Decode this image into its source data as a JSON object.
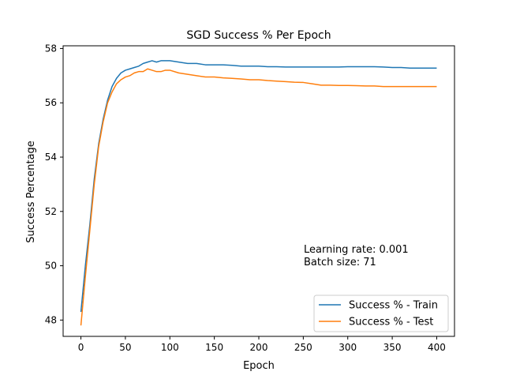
{
  "chart_data": {
    "type": "line",
    "title": "SGD Success % Per Epoch",
    "xlabel": "Epoch",
    "ylabel": "Success Percentage",
    "xlim": [
      -20,
      420
    ],
    "ylim": [
      47.4,
      58.1
    ],
    "xticks": [
      0,
      50,
      100,
      150,
      200,
      250,
      300,
      350,
      400
    ],
    "yticks": [
      48,
      50,
      52,
      54,
      56,
      58
    ],
    "grid": false,
    "legend_position": "lower-right",
    "annotation": [
      "Learning rate: 0.001",
      "Batch size: 71"
    ],
    "series": [
      {
        "name": "Success % - Train",
        "color": "#1f77b4",
        "x": [
          0,
          5,
          10,
          15,
          20,
          25,
          30,
          35,
          40,
          45,
          50,
          55,
          60,
          65,
          70,
          75,
          80,
          85,
          90,
          95,
          100,
          110,
          120,
          130,
          140,
          150,
          160,
          170,
          180,
          190,
          200,
          210,
          220,
          230,
          240,
          250,
          260,
          270,
          280,
          290,
          300,
          310,
          320,
          330,
          340,
          350,
          360,
          370,
          380,
          390,
          400
        ],
        "values": [
          48.3,
          50.0,
          51.5,
          53.2,
          54.5,
          55.4,
          56.1,
          56.6,
          56.9,
          57.1,
          57.2,
          57.25,
          57.3,
          57.35,
          57.45,
          57.5,
          57.55,
          57.5,
          57.55,
          57.55,
          57.55,
          57.5,
          57.45,
          57.45,
          57.4,
          57.4,
          57.4,
          57.38,
          57.35,
          57.35,
          57.35,
          57.33,
          57.33,
          57.32,
          57.32,
          57.32,
          57.32,
          57.32,
          57.32,
          57.32,
          57.33,
          57.33,
          57.33,
          57.33,
          57.32,
          57.3,
          57.3,
          57.28,
          57.28,
          57.28,
          57.28
        ]
      },
      {
        "name": "Success % - Test",
        "color": "#ff7f0e",
        "x": [
          0,
          5,
          10,
          15,
          20,
          25,
          30,
          35,
          40,
          45,
          50,
          55,
          60,
          65,
          70,
          75,
          80,
          85,
          90,
          95,
          100,
          110,
          120,
          130,
          140,
          150,
          160,
          170,
          180,
          190,
          200,
          210,
          220,
          230,
          240,
          250,
          260,
          270,
          280,
          290,
          300,
          310,
          320,
          330,
          340,
          350,
          360,
          370,
          380,
          390,
          400
        ],
        "values": [
          47.8,
          49.6,
          51.3,
          53.0,
          54.4,
          55.3,
          56.0,
          56.4,
          56.7,
          56.85,
          56.95,
          57.0,
          57.1,
          57.15,
          57.15,
          57.25,
          57.2,
          57.15,
          57.15,
          57.2,
          57.2,
          57.1,
          57.05,
          57.0,
          56.95,
          56.95,
          56.92,
          56.9,
          56.88,
          56.85,
          56.85,
          56.82,
          56.8,
          56.78,
          56.76,
          56.75,
          56.7,
          56.65,
          56.65,
          56.64,
          56.64,
          56.63,
          56.62,
          56.62,
          56.6,
          56.6,
          56.6,
          56.6,
          56.6,
          56.6,
          56.6
        ]
      }
    ]
  }
}
